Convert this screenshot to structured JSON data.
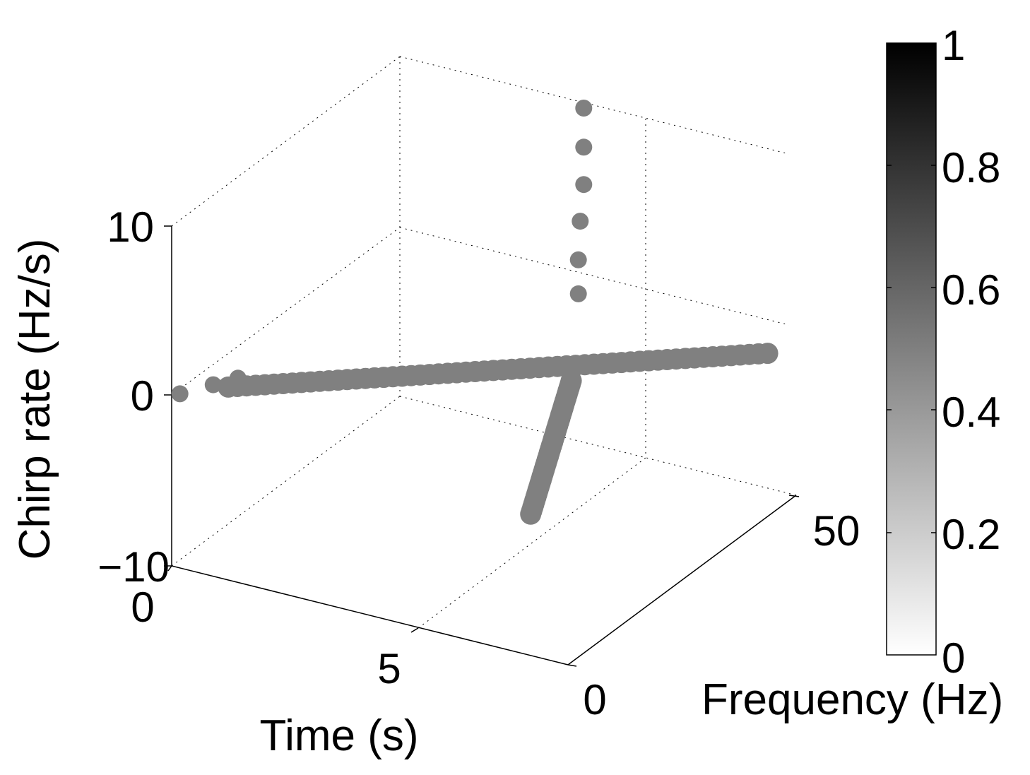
{
  "chart_data": {
    "type": "scatter",
    "projection": "3d",
    "x_axis": {
      "label": "Time (s)",
      "range": [
        0,
        10
      ],
      "ticks": [
        "0",
        "5"
      ]
    },
    "y_axis": {
      "label": "Frequency (Hz)",
      "range": [
        0,
        64
      ],
      "ticks": [
        "0",
        "50"
      ]
    },
    "z_axis": {
      "label": "Chirp rate (Hz/s)",
      "range": [
        -10,
        10
      ],
      "ticks": [
        "10",
        "0",
        "−10"
      ]
    },
    "colorbar": {
      "range": [
        0,
        1
      ],
      "ticks": [
        "0",
        "0.2",
        "0.4",
        "0.6",
        "0.8",
        "1"
      ],
      "colormap": "white-to-black"
    },
    "marker_color": "#808080",
    "grid": "dotted",
    "series": [
      {
        "points": [
          {
            "t": 5.0,
            "f": 60.0,
            "c": 10.5
          },
          {
            "t": 5.0,
            "f": 60.0,
            "c": 8.2
          },
          {
            "t": 5.0,
            "f": 60.0,
            "c": 6.0
          },
          {
            "t": 5.0,
            "f": 59.0,
            "c": 4.0
          },
          {
            "t": 5.0,
            "f": 58.5,
            "c": 1.8
          },
          {
            "t": 5.0,
            "f": 58.5,
            "c": -0.2
          },
          {
            "t": 0.8,
            "f": 9.7,
            "c": 0.0
          },
          {
            "t": 0.5,
            "f": 6.1,
            "c": 0.0
          },
          {
            "t": 0.1,
            "f": 1.2,
            "c": 0.0
          }
        ]
      },
      {
        "start": {
          "t": 0.8,
          "f": 7.0,
          "c": -0.1
        },
        "end": {
          "t": 10.0,
          "f": 56.0,
          "c": -0.4
        },
        "count": 60
      },
      {
        "start": {
          "t": 5.0,
          "f": 56.5,
          "c": -5.0
        },
        "end": {
          "t": 7.8,
          "f": 14.0,
          "c": -4.6
        },
        "count": 40
      }
    ]
  }
}
